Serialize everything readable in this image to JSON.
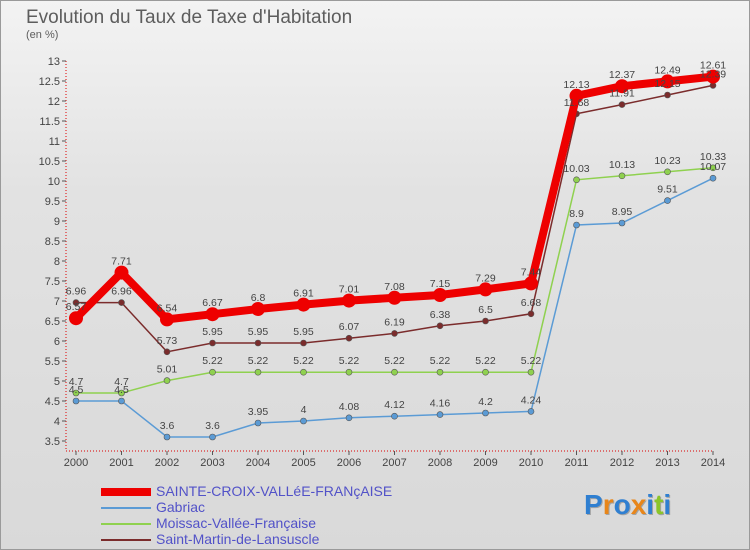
{
  "title": "Evolution du Taux de Taxe d'Habitation",
  "unit": "(en %)",
  "logo": {
    "text": "Proxiti",
    "colors": [
      "#2f7fd1",
      "#e8861a",
      "#2f7fd1",
      "#e8861a",
      "#2f7fd1",
      "#8bc52a",
      "#2f7fd1"
    ]
  },
  "chart_data": {
    "type": "line",
    "title": "Evolution du Taux de Taxe d'Habitation",
    "ylabel": "(en %)",
    "xlabel": "",
    "x": [
      "2000",
      "2001",
      "2002",
      "2003",
      "2004",
      "2005",
      "2006",
      "2007",
      "2008",
      "2009",
      "2010",
      "2011",
      "2012",
      "2013",
      "2014"
    ],
    "ylim": [
      3.5,
      13
    ],
    "yticks": [
      "3.5",
      "4",
      "4.5",
      "5",
      "5.5",
      "6",
      "6.5",
      "7",
      "7.5",
      "8",
      "8.5",
      "9",
      "9.5",
      "10",
      "10.5",
      "11",
      "11.5",
      "12",
      "12.5",
      "13"
    ],
    "grid": false,
    "legend_position": "bottom-left",
    "series": [
      {
        "name": "SAINTE-CROIX-VALLéE-FRANçAISE",
        "color": "#ee0000",
        "emphasis": true,
        "values": [
          6.57,
          7.71,
          6.54,
          6.67,
          6.8,
          6.91,
          7.01,
          7.08,
          7.15,
          7.29,
          7.44,
          12.13,
          12.37,
          12.49,
          12.61
        ],
        "labels": [
          "6.57",
          "7.71",
          "6.54",
          "6.67",
          "6.8",
          "6.91",
          "7.01",
          "7.08",
          "7.15",
          "7.29",
          "7.44",
          "12.13",
          "12.37",
          "12.49",
          "12.61"
        ]
      },
      {
        "name": "Gabriac",
        "color": "#5b9bd5",
        "emphasis": false,
        "values": [
          4.5,
          4.5,
          3.6,
          3.6,
          3.95,
          4.0,
          4.08,
          4.12,
          4.16,
          4.2,
          4.24,
          8.9,
          8.95,
          9.51,
          10.07
        ],
        "labels": [
          "4.5",
          "4.5",
          "3.6",
          "3.6",
          "3.95",
          "4",
          "4.08",
          "4.12",
          "4.16",
          "4.2",
          "4.24",
          "8.9",
          "8.95",
          "9.51",
          "10.07"
        ]
      },
      {
        "name": "Moissac-Vallée-Française",
        "color": "#8fd14f",
        "emphasis": false,
        "values": [
          4.7,
          4.7,
          5.01,
          5.22,
          5.22,
          5.22,
          5.22,
          5.22,
          5.22,
          5.22,
          5.22,
          10.03,
          10.13,
          10.23,
          10.33
        ],
        "labels": [
          "4.7",
          "4.7",
          "5.01",
          "5.22",
          "5.22",
          "5.22",
          "5.22",
          "5.22",
          "5.22",
          "5.22",
          "5.22",
          "10.03",
          "10.13",
          "10.23",
          "10.33"
        ]
      },
      {
        "name": "Saint-Martin-de-Lansuscle",
        "color": "#7b2c2c",
        "emphasis": false,
        "values": [
          6.96,
          6.96,
          5.73,
          5.95,
          5.95,
          5.95,
          6.07,
          6.19,
          6.38,
          6.5,
          6.68,
          11.68,
          11.91,
          12.15,
          12.39
        ],
        "labels": [
          "6.96",
          "6.96",
          "5.73",
          "5.95",
          "5.95",
          "5.95",
          "6.07",
          "6.19",
          "6.38",
          "6.5",
          "6.68",
          "11.68",
          "11.91",
          "12.15",
          "12.39"
        ]
      }
    ]
  }
}
